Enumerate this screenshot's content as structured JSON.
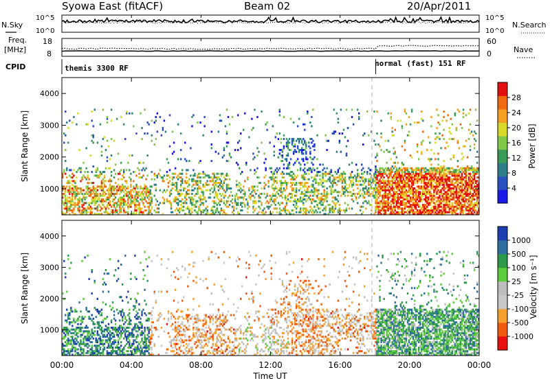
{
  "header": {
    "station": "Syowa East (fitACF)",
    "beam": "Beam 02",
    "date": "20/Apr/2011"
  },
  "left_labels": {
    "nsky": "N.Sky",
    "freq": "Freq.",
    "freq_unit": "[MHz]",
    "cpid": "CPID"
  },
  "right_labels": {
    "nsearch": "N.Search",
    "nave": "Nave"
  },
  "cpid_modes": [
    {
      "label": "themis 3300 RF",
      "start_hour": 0
    },
    {
      "label": "normal (fast) 151 RF",
      "start_hour": 18.05
    }
  ],
  "colors": {
    "power": [
      "#1a1ae6",
      "#2a50c0",
      "#2f7f8a",
      "#3a9a5a",
      "#7fc94a",
      "#d9d92a",
      "#f5a020",
      "#f06a10",
      "#e21010"
    ],
    "velocity": [
      "#e81010",
      "#f05a10",
      "#f5a030",
      "#c8c8c8",
      "#bdbdbd",
      "#5ccc3c",
      "#2f9a4a",
      "#2e6fa0",
      "#1f3fb0"
    ]
  },
  "chart_data": [
    {
      "type": "line",
      "panel": "noise",
      "x_range": [
        0,
        24
      ],
      "left_axis": {
        "label": "N.Sky",
        "ticks": [
          "10^5",
          "10^0"
        ]
      },
      "right_axis": {
        "label": "N.Search",
        "ticks": [
          "10^5",
          "10^0"
        ]
      },
      "series": []
    },
    {
      "type": "line",
      "panel": "frequency",
      "x_range": [
        0,
        24
      ],
      "left_axis": {
        "label": "Freq. [MHz]",
        "ticks": [
          "18",
          "8"
        ],
        "ylim": [
          8,
          18
        ]
      },
      "right_axis": {
        "label": "Nave",
        "ticks": [
          "60",
          "0"
        ],
        "ylim": [
          0,
          60
        ]
      },
      "series": []
    },
    {
      "type": "heatmap",
      "panel": "power",
      "ylabel": "Slant Range [km]",
      "ylim": [
        180,
        4500
      ],
      "yticks": [
        1000,
        2000,
        3000,
        4000
      ],
      "x_range": [
        0,
        24
      ],
      "colorbar": {
        "label": "Power [dB]",
        "ticks": [
          "4",
          "8",
          "12",
          "16",
          "20",
          "24",
          "28"
        ],
        "range": [
          0,
          30
        ]
      }
    },
    {
      "type": "heatmap",
      "panel": "velocity",
      "ylabel": "Slant Range [km]",
      "ylim": [
        180,
        4500
      ],
      "yticks": [
        1000,
        2000,
        3000,
        4000
      ],
      "x_range": [
        0,
        24
      ],
      "xlabel": "Time UT",
      "xticks": [
        "00:00",
        "04:00",
        "08:00",
        "12:00",
        "16:00",
        "20:00",
        "00:00"
      ],
      "colorbar": {
        "label": "Velocity [m s⁻¹]",
        "ticks": [
          "-1000",
          "-500",
          "-100",
          "-25",
          "25",
          "100",
          "500",
          "1000"
        ]
      }
    }
  ]
}
